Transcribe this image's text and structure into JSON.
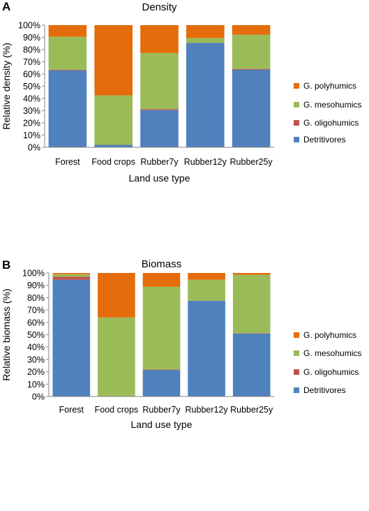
{
  "chart_data": [
    {
      "type": "bar",
      "stacked": true,
      "panel_label": "A",
      "title": "Density",
      "xlabel": "Land use type",
      "ylabel": "Relative density (%)",
      "ylim": [
        0,
        100
      ],
      "yticks": [
        "0%",
        "10%",
        "20%",
        "30%",
        "40%",
        "50%",
        "60%",
        "70%",
        "80%",
        "90%",
        "100%"
      ],
      "categories": [
        "Forest",
        "Food crops",
        "Rubber7y",
        "Rubber12y",
        "Rubber25y"
      ],
      "series": [
        {
          "name": "Detritivores",
          "color": "#4f81bd",
          "values": [
            63,
            2,
            30.5,
            85.5,
            63.5
          ]
        },
        {
          "name": "G. oligohumics",
          "color": "#c0504d",
          "values": [
            0.5,
            0,
            0.8,
            0,
            0.7
          ]
        },
        {
          "name": "G. mesohumics",
          "color": "#9bbb59",
          "values": [
            27,
            40.5,
            45.9,
            4,
            28
          ]
        },
        {
          "name": "G. polyhumics",
          "color": "#e46c0a",
          "values": [
            9.5,
            57.5,
            22.8,
            10.5,
            7.8
          ]
        }
      ],
      "legend": [
        "G. polyhumics",
        "G. mesohumics",
        "G. oligohumics",
        "Detritivores"
      ],
      "legend_position": "right",
      "grid": false
    },
    {
      "type": "bar",
      "stacked": true,
      "panel_label": "B",
      "title": "Biomass",
      "xlabel": "Land use type",
      "ylabel": "Relative biomass (%)",
      "ylim": [
        0,
        100
      ],
      "yticks": [
        "0%",
        "10%",
        "20%",
        "30%",
        "40%",
        "50%",
        "60%",
        "70%",
        "80%",
        "90%",
        "100%"
      ],
      "categories": [
        "Forest",
        "Food crops",
        "Rubber7y",
        "Rubber12y",
        "Rubber25y"
      ],
      "series": [
        {
          "name": "Detritivores",
          "color": "#4f81bd",
          "values": [
            94.5,
            0,
            21.5,
            77.5,
            51
          ]
        },
        {
          "name": "G. oligohumics",
          "color": "#c0504d",
          "values": [
            2.5,
            0,
            0.3,
            0,
            0.3
          ]
        },
        {
          "name": "G. mesohumics",
          "color": "#9bbb59",
          "values": [
            2,
            64,
            67,
            17,
            47.2
          ]
        },
        {
          "name": "G. polyhumics",
          "color": "#e46c0a",
          "values": [
            1,
            36,
            11.2,
            5.5,
            1.5
          ]
        }
      ],
      "legend": [
        "G. polyhumics",
        "G. mesohumics",
        "G. oligohumics",
        "Detritivores"
      ],
      "legend_position": "right",
      "grid": false
    }
  ]
}
